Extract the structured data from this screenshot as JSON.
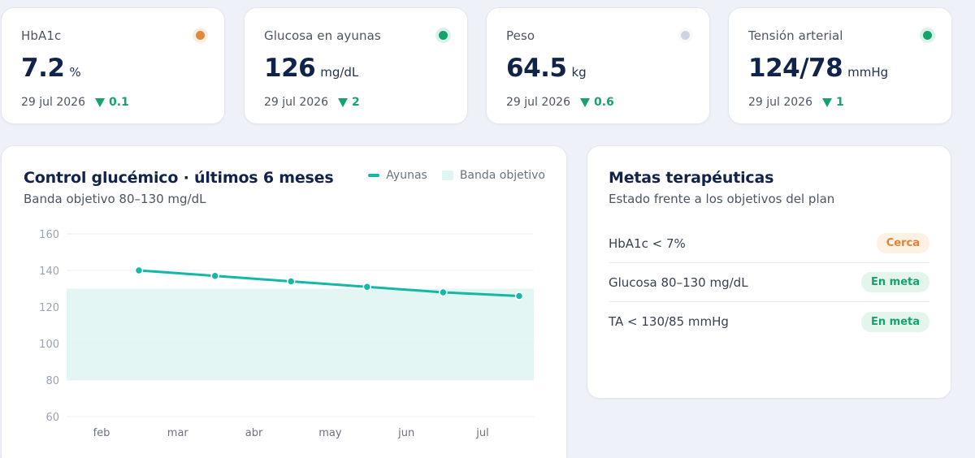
{
  "kpis": [
    {
      "label": "HbA1c",
      "value": "7.2",
      "unit": "%",
      "date": "29 jul 2026",
      "delta": "0.1",
      "dot_color": "#e08a3c"
    },
    {
      "label": "Glucosa en ayunas",
      "value": "126",
      "unit": "mg/dL",
      "date": "29 jul 2026",
      "delta": "2",
      "dot_color": "#16a36b"
    },
    {
      "label": "Peso",
      "value": "64.5",
      "unit": "kg",
      "date": "29 jul 2026",
      "delta": "0.6",
      "dot_color": "#cdd4e0"
    },
    {
      "label": "Tensión arterial",
      "value": "124/78",
      "unit": "mmHg",
      "date": "29 jul 2026",
      "delta": "1",
      "dot_color": "#16a36b"
    }
  ],
  "chart": {
    "title": "Control glucémico · últimos 6 meses",
    "subtitle": "Banda objetivo 80–130 mg/dL",
    "legend": {
      "line": "Ayunas",
      "band": "Banda objetivo"
    }
  },
  "chart_data": {
    "type": "line",
    "categories": [
      "feb",
      "mar",
      "abr",
      "may",
      "jun",
      "jul"
    ],
    "series": [
      {
        "name": "Ayunas",
        "values": [
          140,
          137,
          134,
          131,
          128,
          126
        ]
      }
    ],
    "band": [
      80,
      130
    ],
    "yticks": [
      60,
      80,
      100,
      120,
      140,
      160
    ],
    "ylim": [
      60,
      160
    ],
    "grid": true,
    "legend_position": "top-right",
    "line_color": "#14b8a6",
    "band_color": "#e3f6f3"
  },
  "goals": {
    "title": "Metas terapéuticas",
    "subtitle": "Estado frente a los objetivos del plan",
    "items": [
      {
        "label": "HbA1c < 7%",
        "status": "Cerca",
        "status_color": "#e0823a",
        "status_bg": "#fdf1e4"
      },
      {
        "label": "Glucosa 80–130 mg/dL",
        "status": "En meta",
        "status_color": "#16a36b",
        "status_bg": "#e4f6ec"
      },
      {
        "label": "TA < 130/85 mmHg",
        "status": "En meta",
        "status_color": "#16a36b",
        "status_bg": "#e4f6ec"
      }
    ]
  }
}
